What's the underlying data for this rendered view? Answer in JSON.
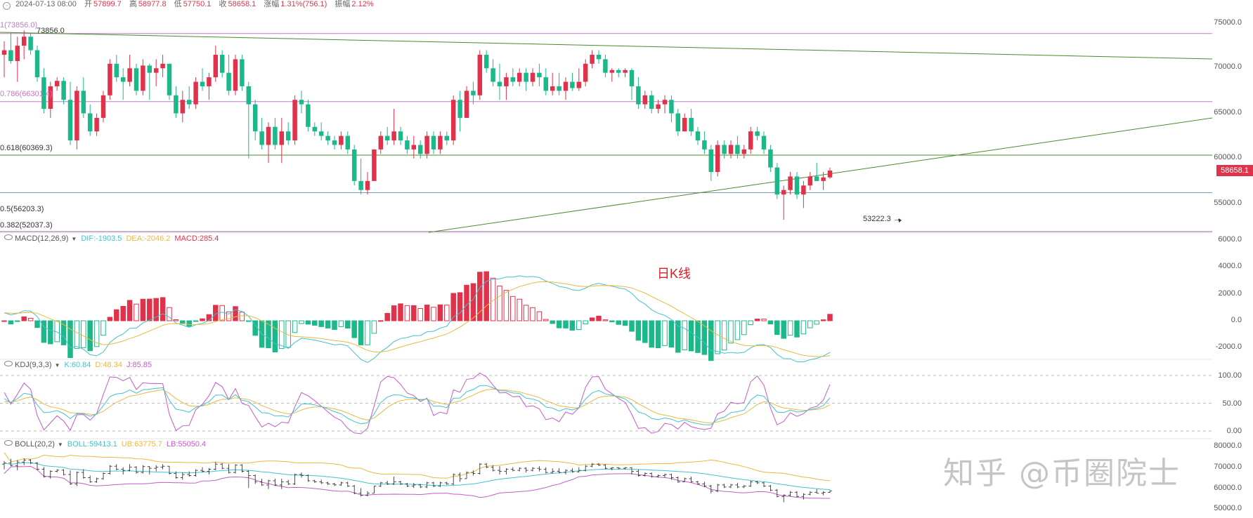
{
  "header": {
    "datetime": "2024-07-13 08:00",
    "open_label": "开",
    "open": "57899.7",
    "high_label": "高",
    "high": "58977.8",
    "low_label": "低",
    "low": "57750.1",
    "close_label": "收",
    "close": "58658.1",
    "change_label": "涨幅",
    "change": "1.31%(756.1)",
    "amp_label": "振幅",
    "amp": "2.12%"
  },
  "colors": {
    "up": "#e0334b",
    "down": "#1cb88a",
    "dif": "#40c2cf",
    "dea": "#e8b93c",
    "macd": "#e0334b",
    "kdj_j": "#c45bc9",
    "fib_purple": "#c27bc5",
    "trend_green": "#4a8a2a"
  },
  "price_axis": [
    "75000.0",
    "70000.0",
    "65000.0",
    "60000.0",
    "55000.0"
  ],
  "current_price": "58658.1",
  "fib_labels": [
    "1(73856.0)",
    "0.786(66301.4)",
    "0.618(60369.3)",
    "0.5(56203.3)",
    "0.382(52037.3)"
  ],
  "high_mark": "73856.0",
  "low_mark": "53222.3 →",
  "macd": {
    "name": "MACD(12,26,9)",
    "dif": "DIF:-1903.5",
    "dea": "DEA:-2046.2",
    "macd": "MACD:285.4",
    "axis": [
      "6000.0",
      "4000.0",
      "2000.0",
      "0.0",
      "-2000.0"
    ]
  },
  "kdj": {
    "name": "KDJ(9,3,3)",
    "k": "K:60.84",
    "d": "D:48.34",
    "j": "J:85.85",
    "axis": [
      "100.00",
      "50.00",
      "0.00"
    ]
  },
  "boll": {
    "name": "BOLL(20,2)",
    "boll": "BOLL:59413.1",
    "ub": "UB:63775.7",
    "lb": "LB:55050.4",
    "axis": [
      "80000.0",
      "70000.0",
      "60000.0",
      "50000.0"
    ]
  },
  "chart_title": "日K线",
  "watermark": "知乎 @币圈院士",
  "chart_data": {
    "type": "candlestick",
    "ohlc": [
      [
        71500,
        73000,
        69000,
        72000
      ],
      [
        72000,
        74000,
        70500,
        70800
      ],
      [
        70800,
        73500,
        68500,
        72500
      ],
      [
        72500,
        74200,
        71000,
        73500
      ],
      [
        73500,
        73900,
        71500,
        72000
      ],
      [
        72000,
        72500,
        68500,
        69000
      ],
      [
        69000,
        70000,
        65000,
        65500
      ],
      [
        65500,
        68500,
        64500,
        68000
      ],
      [
        68000,
        69000,
        67500,
        68600
      ],
      [
        68600,
        69000,
        66000,
        66500
      ],
      [
        66500,
        68500,
        61500,
        62000
      ],
      [
        62000,
        68000,
        61000,
        67500
      ],
      [
        67500,
        69000,
        64500,
        65000
      ],
      [
        65000,
        66000,
        62500,
        63000
      ],
      [
        63000,
        65000,
        62500,
        64500
      ],
      [
        64500,
        67500,
        64000,
        67000
      ],
      [
        67000,
        71000,
        66500,
        70500
      ],
      [
        70500,
        71500,
        68500,
        69000
      ],
      [
        69000,
        70000,
        66500,
        68500
      ],
      [
        68500,
        71500,
        68000,
        70000
      ],
      [
        70000,
        70500,
        67000,
        67500
      ],
      [
        67500,
        71000,
        67000,
        70300
      ],
      [
        70300,
        70500,
        66500,
        69500
      ],
      [
        69500,
        71000,
        68000,
        70000
      ],
      [
        70000,
        71500,
        69000,
        70500
      ],
      [
        70500,
        70500,
        66500,
        67000
      ],
      [
        67000,
        68000,
        64500,
        65000
      ],
      [
        65000,
        67500,
        64000,
        66500
      ],
      [
        66500,
        68000,
        65500,
        66000
      ],
      [
        66000,
        69000,
        65500,
        68500
      ],
      [
        68500,
        70000,
        67500,
        68000
      ],
      [
        68000,
        69500,
        66500,
        69000
      ],
      [
        69000,
        72500,
        68500,
        71500
      ],
      [
        71500,
        72000,
        69000,
        69500
      ],
      [
        69500,
        71500,
        67000,
        67500
      ],
      [
        67500,
        71500,
        67000,
        71000
      ],
      [
        71000,
        71500,
        67500,
        68000
      ],
      [
        68000,
        68500,
        60000,
        66000
      ],
      [
        66000,
        66500,
        62000,
        63000
      ],
      [
        63000,
        64500,
        61000,
        61500
      ],
      [
        61500,
        64000,
        59500,
        63500
      ],
      [
        63500,
        64500,
        61000,
        61500
      ],
      [
        61500,
        64500,
        59500,
        63000
      ],
      [
        63000,
        64000,
        61500,
        62000
      ],
      [
        62000,
        67000,
        61500,
        66500
      ],
      [
        66500,
        67500,
        65000,
        66000
      ],
      [
        66000,
        66500,
        63000,
        63500
      ],
      [
        63500,
        64000,
        62500,
        63000
      ],
      [
        63000,
        64000,
        62000,
        62500
      ],
      [
        62500,
        63000,
        61500,
        62000
      ],
      [
        62000,
        62500,
        61000,
        61500
      ],
      [
        61500,
        63000,
        61000,
        62500
      ],
      [
        62500,
        63000,
        60500,
        61000
      ],
      [
        61000,
        61500,
        57000,
        57500
      ],
      [
        57500,
        60000,
        56000,
        56500
      ],
      [
        56500,
        58500,
        56000,
        57500
      ],
      [
        57500,
        61000,
        57500,
        61000
      ],
      [
        61000,
        63000,
        60500,
        62500
      ],
      [
        62500,
        63500,
        61500,
        62000
      ],
      [
        62000,
        65500,
        61500,
        63000
      ],
      [
        63000,
        63500,
        61500,
        62000
      ],
      [
        62000,
        62500,
        60500,
        61000
      ],
      [
        61000,
        62500,
        60000,
        61500
      ],
      [
        61500,
        62000,
        60000,
        60500
      ],
      [
        60500,
        63000,
        60000,
        62500
      ],
      [
        62500,
        63000,
        60500,
        61000
      ],
      [
        61000,
        63000,
        60500,
        62500
      ],
      [
        62500,
        63000,
        61500,
        62000
      ],
      [
        62000,
        67000,
        61500,
        66500
      ],
      [
        66500,
        67500,
        63000,
        64500
      ],
      [
        64500,
        68000,
        64500,
        67500
      ],
      [
        67500,
        68500,
        66000,
        67000
      ],
      [
        67000,
        72000,
        66500,
        71500
      ],
      [
        71500,
        72000,
        69500,
        70000
      ],
      [
        70000,
        71000,
        68000,
        68500
      ],
      [
        68500,
        70500,
        66500,
        68000
      ],
      [
        68000,
        69500,
        66500,
        69000
      ],
      [
        69000,
        70000,
        68000,
        68500
      ],
      [
        68500,
        70000,
        68000,
        69500
      ],
      [
        69500,
        70000,
        67500,
        68500
      ],
      [
        68500,
        70000,
        68000,
        69500
      ],
      [
        69500,
        70500,
        68000,
        69000
      ],
      [
        69000,
        70000,
        67000,
        67500
      ],
      [
        67500,
        69500,
        67000,
        68000
      ],
      [
        68000,
        69500,
        67000,
        67500
      ],
      [
        67500,
        69000,
        66500,
        68500
      ],
      [
        68500,
        69500,
        67500,
        67800
      ],
      [
        67800,
        70000,
        67500,
        68500
      ],
      [
        68500,
        71000,
        68000,
        70500
      ],
      [
        70500,
        72000,
        70000,
        71500
      ],
      [
        71500,
        72000,
        70500,
        71000
      ],
      [
        71000,
        71500,
        69000,
        69500
      ],
      [
        69500,
        70000,
        68500,
        69800
      ],
      [
        69800,
        70000,
        69000,
        69500
      ],
      [
        69500,
        70000,
        69000,
        69800
      ],
      [
        69800,
        70000,
        66500,
        68000
      ],
      [
        68000,
        69000,
        65500,
        66000
      ],
      [
        66000,
        67500,
        65500,
        67000
      ],
      [
        67000,
        67500,
        65000,
        65500
      ],
      [
        65500,
        66500,
        65000,
        66000
      ],
      [
        66000,
        67000,
        65000,
        66500
      ],
      [
        66500,
        67000,
        64000,
        65000
      ],
      [
        65000,
        65500,
        62500,
        63000
      ],
      [
        63000,
        65000,
        63000,
        64500
      ],
      [
        64500,
        65500,
        62500,
        63000
      ],
      [
        63000,
        63500,
        61500,
        62000
      ],
      [
        62000,
        63000,
        60500,
        61000
      ],
      [
        61000,
        61500,
        57500,
        58500
      ],
      [
        58500,
        62000,
        58000,
        61500
      ],
      [
        61500,
        62000,
        60000,
        60500
      ],
      [
        60500,
        62000,
        60000,
        61500
      ],
      [
        61500,
        62500,
        60000,
        60500
      ],
      [
        60500,
        61500,
        60000,
        61000
      ],
      [
        61000,
        63500,
        60500,
        63000
      ],
      [
        63000,
        63500,
        62000,
        62500
      ],
      [
        62500,
        63000,
        60500,
        61000
      ],
      [
        61000,
        61500,
        58500,
        59000
      ],
      [
        59000,
        59500,
        55500,
        56000
      ],
      [
        56000,
        57000,
        53200,
        56500
      ],
      [
        56500,
        58500,
        56000,
        58000
      ],
      [
        58000,
        58500,
        55500,
        56000
      ],
      [
        56000,
        57500,
        54500,
        57000
      ],
      [
        57000,
        58500,
        56500,
        58000
      ],
      [
        58000,
        59500,
        57500,
        57500
      ],
      [
        57500,
        58500,
        56500,
        57900
      ],
      [
        57900,
        58978,
        57750,
        58658
      ]
    ]
  }
}
